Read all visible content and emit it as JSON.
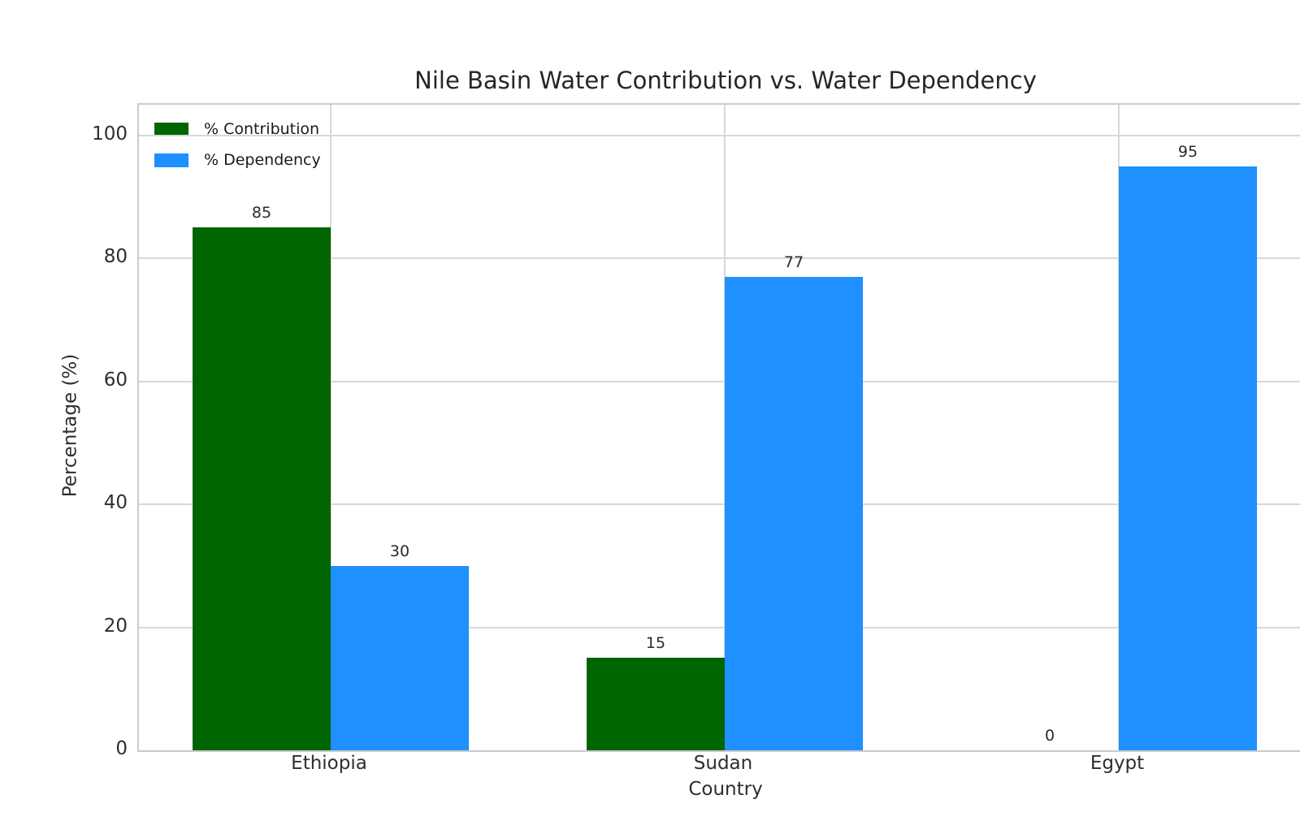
{
  "chart_data": {
    "type": "bar",
    "title": "Nile Basin Water Contribution vs. Water Dependency",
    "xlabel": "Country",
    "ylabel": "Percentage (%)",
    "categories": [
      "Ethiopia",
      "Sudan",
      "Egypt"
    ],
    "series": [
      {
        "name": "% Contribution",
        "color": "#006400",
        "values": [
          85,
          15,
          0
        ]
      },
      {
        "name": "% Dependency",
        "color": "#1E90FF",
        "values": [
          30,
          77,
          95
        ]
      }
    ],
    "yticks": [
      0,
      20,
      40,
      60,
      80,
      100
    ],
    "ylim": [
      0,
      105
    ],
    "grid": true,
    "legend_position": "upper left",
    "bar_value_labels": [
      [
        85,
        15,
        0
      ],
      [
        30,
        77,
        95
      ]
    ]
  },
  "colors": {
    "grid": "#d8d8d8",
    "spine": "#cccccc",
    "title_text": "#262626",
    "tick_text": "#2e2e2e",
    "value_label_text": "#2b2b2b"
  }
}
